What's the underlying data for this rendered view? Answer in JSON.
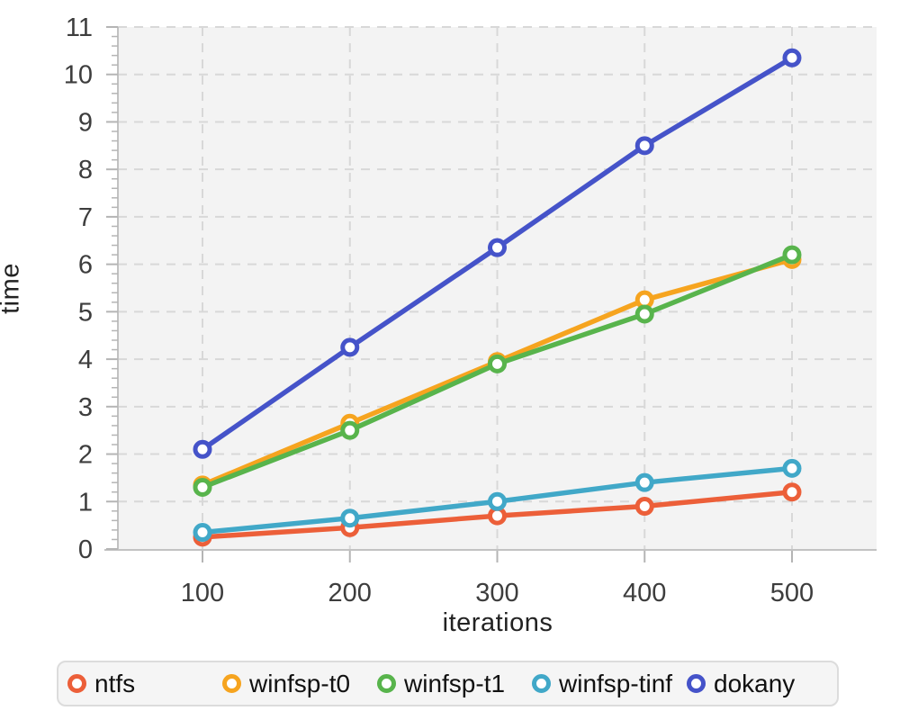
{
  "chart_data": {
    "type": "line",
    "x": [
      100,
      200,
      300,
      400,
      500
    ],
    "xlabel": "iterations",
    "ylabel": "time",
    "x_ticks": [
      "100",
      "200",
      "300",
      "400",
      "500"
    ],
    "y_ticks": [
      "0",
      "1",
      "2",
      "3",
      "4",
      "5",
      "6",
      "7",
      "8",
      "9",
      "10",
      "11"
    ],
    "ylim": [
      0,
      11
    ],
    "y_minor_step": 0.2,
    "grid": "dashed",
    "legend_position": "bottom",
    "series": [
      {
        "name": "ntfs",
        "color": "#ec5f39",
        "values": [
          0.25,
          0.45,
          0.7,
          0.9,
          1.2
        ]
      },
      {
        "name": "winfsp-t0",
        "color": "#f6a41f",
        "values": [
          1.35,
          2.65,
          3.95,
          5.25,
          6.1
        ]
      },
      {
        "name": "winfsp-t1",
        "color": "#58b44c",
        "values": [
          1.3,
          2.5,
          3.9,
          4.95,
          6.2
        ]
      },
      {
        "name": "winfsp-tinf",
        "color": "#41a8c8",
        "values": [
          0.35,
          0.65,
          1.0,
          1.4,
          1.7
        ]
      },
      {
        "name": "dokany",
        "color": "#4553c9",
        "values": [
          2.1,
          4.25,
          6.35,
          8.5,
          10.35
        ]
      }
    ]
  },
  "colors": {
    "page_background": "#ffffff",
    "plot_background": "#f3f3f3",
    "gridline": "#d8d8d8",
    "axis_line": "#c2c2c2",
    "tick_mark": "#b5b5b5",
    "tick_label": "#3d3d3d",
    "axis_title": "#222222",
    "legend_background": "#f5f5f5",
    "legend_border": "#dcdcdc",
    "legend_text": "#111111",
    "marker_fill": "#ffffff"
  }
}
